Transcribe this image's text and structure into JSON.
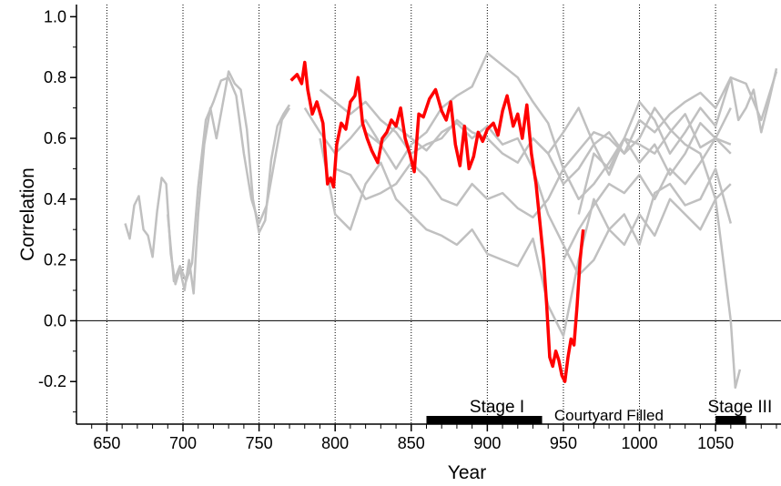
{
  "chart_data": {
    "type": "line",
    "title": "",
    "xlabel": "Year",
    "ylabel": "Correlation",
    "xlim": [
      630,
      1093
    ],
    "ylim": [
      -0.34,
      1.04
    ],
    "x_ticks": [
      650,
      700,
      750,
      800,
      850,
      900,
      950,
      1000,
      1050
    ],
    "x_tick_labels": [
      "650",
      "700",
      "750",
      "800",
      "850",
      "900",
      "950",
      "1000",
      "1050"
    ],
    "y_ticks": [
      -0.2,
      0.0,
      0.2,
      0.4,
      0.6,
      0.8,
      1.0
    ],
    "y_tick_labels": [
      "-0.2",
      "0.0",
      "0.2",
      "0.4",
      "0.6",
      "0.8",
      "1.0"
    ],
    "vertical_gridlines_at": [
      650,
      700,
      750,
      800,
      850,
      900,
      950,
      1000,
      1050
    ],
    "grid_style": "dotted vertical",
    "zero_line": true,
    "colors": {
      "highlight": "#ff0000",
      "background_series": "#c0c0c0",
      "axis": "#000000"
    },
    "highlight_series": {
      "x": [
        771,
        775,
        778,
        780,
        782,
        785,
        788,
        792,
        795,
        797,
        799,
        801,
        804,
        807,
        810,
        813,
        815,
        818,
        821,
        824,
        828,
        831,
        834,
        837,
        840,
        843,
        846,
        849,
        852,
        855,
        858,
        862,
        866,
        870,
        873,
        876,
        879,
        882,
        885,
        888,
        891,
        894,
        897,
        900,
        904,
        907,
        910,
        913,
        917,
        920,
        923,
        926,
        929,
        932,
        935,
        937,
        939,
        941,
        943,
        945,
        947,
        949,
        951,
        953,
        955,
        957,
        959,
        961,
        963
      ],
      "y": [
        0.79,
        0.81,
        0.78,
        0.85,
        0.76,
        0.68,
        0.72,
        0.65,
        0.45,
        0.47,
        0.44,
        0.58,
        0.65,
        0.63,
        0.72,
        0.74,
        0.8,
        0.65,
        0.6,
        0.56,
        0.52,
        0.6,
        0.62,
        0.66,
        0.64,
        0.7,
        0.6,
        0.55,
        0.49,
        0.68,
        0.67,
        0.73,
        0.76,
        0.69,
        0.66,
        0.72,
        0.58,
        0.51,
        0.64,
        0.5,
        0.54,
        0.62,
        0.59,
        0.63,
        0.65,
        0.61,
        0.69,
        0.74,
        0.64,
        0.68,
        0.6,
        0.71,
        0.55,
        0.45,
        0.3,
        0.2,
        0.05,
        -0.12,
        -0.15,
        -0.1,
        -0.13,
        -0.18,
        -0.2,
        -0.12,
        -0.06,
        -0.08,
        0.05,
        0.2,
        0.3
      ]
    },
    "background_series": [
      {
        "x": [
          662,
          665,
          668,
          671,
          674,
          677,
          680,
          683,
          686,
          689,
          692,
          695,
          698,
          701,
          704,
          707,
          710,
          714,
          718,
          722,
          726,
          730,
          734,
          738,
          742,
          746,
          750,
          754,
          758,
          762,
          766,
          770
        ],
        "y": [
          0.32,
          0.27,
          0.38,
          0.41,
          0.3,
          0.28,
          0.21,
          0.36,
          0.47,
          0.45,
          0.22,
          0.12,
          0.17,
          0.1,
          0.2,
          0.09,
          0.35,
          0.58,
          0.7,
          0.6,
          0.71,
          0.82,
          0.78,
          0.76,
          0.63,
          0.4,
          0.29,
          0.33,
          0.53,
          0.64,
          0.68,
          0.71
        ]
      },
      {
        "x": [
          690,
          694,
          698,
          702,
          706,
          710,
          715,
          720,
          725,
          730,
          735,
          740,
          745,
          750,
          755,
          760,
          765,
          770
        ],
        "y": [
          0.35,
          0.13,
          0.18,
          0.13,
          0.19,
          0.44,
          0.66,
          0.72,
          0.79,
          0.8,
          0.74,
          0.55,
          0.4,
          0.32,
          0.38,
          0.52,
          0.66,
          0.7
        ]
      },
      {
        "x": [
          780,
          790,
          800,
          810,
          820,
          830,
          840,
          850,
          860,
          870,
          880,
          890,
          900,
          910,
          920,
          930,
          940,
          950,
          960,
          970,
          980,
          990,
          1000,
          1010,
          1020,
          1030,
          1040,
          1050,
          1060
        ],
        "y": [
          0.7,
          0.62,
          0.55,
          0.6,
          0.66,
          0.58,
          0.5,
          0.58,
          0.62,
          0.7,
          0.74,
          0.77,
          0.88,
          0.84,
          0.8,
          0.72,
          0.65,
          0.5,
          0.4,
          0.45,
          0.52,
          0.6,
          0.58,
          0.55,
          0.62,
          0.68,
          0.57,
          0.6,
          0.7
        ]
      },
      {
        "x": [
          790,
          800,
          810,
          820,
          830,
          840,
          850,
          860,
          870,
          880,
          890,
          900,
          910,
          920,
          930,
          940,
          950,
          960,
          970,
          980,
          990,
          1000,
          1010,
          1020,
          1030,
          1040,
          1050,
          1060
        ],
        "y": [
          0.6,
          0.35,
          0.3,
          0.45,
          0.52,
          0.4,
          0.35,
          0.3,
          0.28,
          0.25,
          0.3,
          0.22,
          0.2,
          0.18,
          0.27,
          0.05,
          -0.05,
          0.2,
          0.4,
          0.3,
          0.35,
          0.25,
          0.42,
          0.45,
          0.38,
          0.4,
          0.5,
          0.32
        ]
      },
      {
        "x": [
          790,
          800,
          810,
          820,
          830,
          840,
          850,
          860,
          870,
          880,
          890,
          900,
          910,
          920,
          930,
          940,
          950,
          960,
          970,
          980,
          990,
          1000,
          1010,
          1020,
          1030,
          1040,
          1050,
          1055,
          1060,
          1063,
          1066
        ],
        "y": [
          0.76,
          0.72,
          0.68,
          0.72,
          0.66,
          0.62,
          0.55,
          0.58,
          0.6,
          0.66,
          0.62,
          0.6,
          0.55,
          0.52,
          0.6,
          0.55,
          0.45,
          0.5,
          0.58,
          0.62,
          0.55,
          0.6,
          0.7,
          0.63,
          0.58,
          0.55,
          0.4,
          0.2,
          0.0,
          -0.22,
          -0.16
        ]
      },
      {
        "x": [
          800,
          810,
          820,
          830,
          840,
          850,
          860,
          870,
          880,
          890,
          900,
          910,
          920,
          930,
          940,
          950,
          960,
          970,
          980,
          990,
          1000,
          1010,
          1020,
          1030,
          1040,
          1050,
          1060,
          1070,
          1080,
          1090
        ],
        "y": [
          0.5,
          0.48,
          0.4,
          0.42,
          0.45,
          0.52,
          0.47,
          0.4,
          0.38,
          0.45,
          0.4,
          0.42,
          0.37,
          0.34,
          0.4,
          0.5,
          0.56,
          0.62,
          0.6,
          0.55,
          0.66,
          0.62,
          0.68,
          0.72,
          0.75,
          0.7,
          0.8,
          0.78,
          0.66,
          0.82
        ]
      },
      {
        "x": [
          820,
          830,
          840,
          850,
          860,
          870,
          880,
          890,
          900,
          910,
          920,
          930,
          940,
          950,
          960,
          970,
          980,
          990,
          1000,
          1010,
          1020,
          1030,
          1040,
          1050,
          1060
        ],
        "y": [
          0.62,
          0.58,
          0.64,
          0.6,
          0.56,
          0.62,
          0.65,
          0.6,
          0.64,
          0.58,
          0.6,
          0.5,
          0.35,
          0.25,
          0.15,
          0.2,
          0.3,
          0.25,
          0.35,
          0.28,
          0.4,
          0.35,
          0.3,
          0.4,
          0.45
        ]
      },
      {
        "x": [
          930,
          940,
          950,
          960,
          970,
          980,
          990,
          1000,
          1010,
          1020,
          1030,
          1040,
          1050,
          1060,
          1065,
          1070,
          1075,
          1080,
          1085,
          1090
        ],
        "y": [
          0.6,
          0.55,
          0.62,
          0.7,
          0.58,
          0.48,
          0.6,
          0.72,
          0.66,
          0.55,
          0.62,
          0.7,
          0.64,
          0.8,
          0.66,
          0.7,
          0.76,
          0.62,
          0.72,
          0.83
        ]
      },
      {
        "x": [
          950,
          960,
          970,
          980,
          990,
          1000,
          1010,
          1020,
          1030,
          1040,
          1050,
          1060
        ],
        "y": [
          0.2,
          0.3,
          0.38,
          0.45,
          0.42,
          0.48,
          0.4,
          0.5,
          0.45,
          0.52,
          0.6,
          0.55
        ]
      },
      {
        "x": [
          960,
          970,
          980,
          990,
          1000,
          1010,
          1020,
          1030,
          1040,
          1050,
          1060
        ],
        "y": [
          0.35,
          0.55,
          0.5,
          0.6,
          0.52,
          0.58,
          0.48,
          0.55,
          0.65,
          0.6,
          0.58
        ]
      }
    ],
    "annotations": [
      {
        "label": "Stage I",
        "x_start": 860,
        "x_end": 936
      },
      {
        "label": "Courtyard Filled",
        "x_start": null,
        "x_end": null
      },
      {
        "label": "Stage III",
        "x_start": 1050,
        "x_end": 1070
      }
    ]
  }
}
